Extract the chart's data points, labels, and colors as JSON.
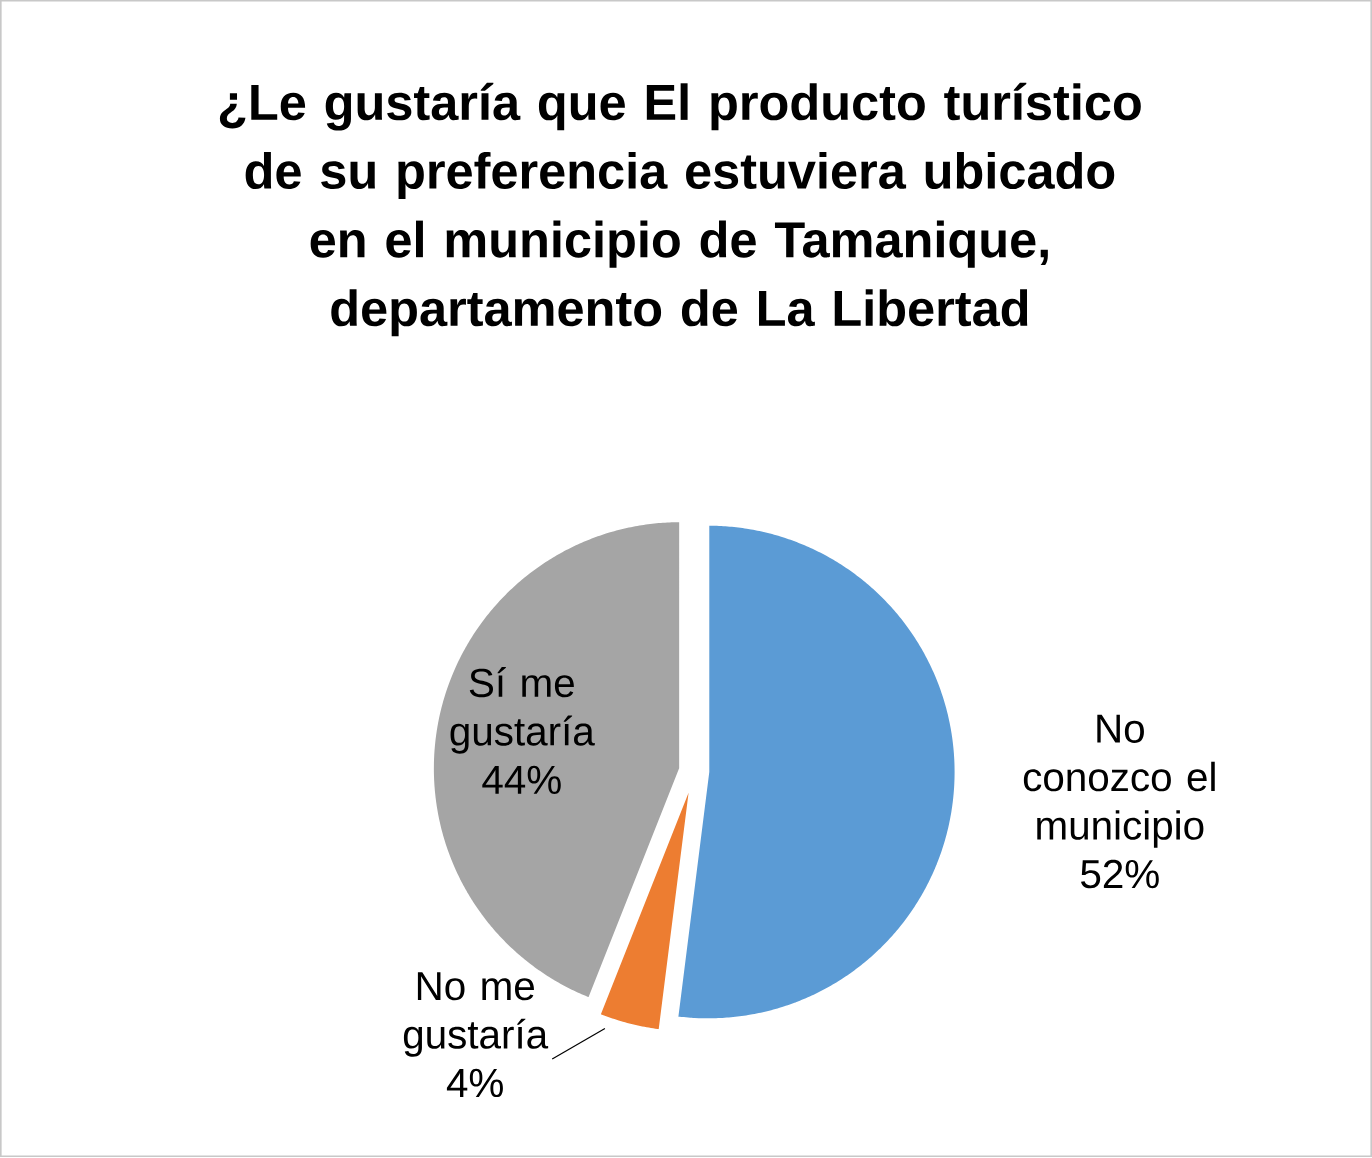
{
  "chart_data": {
    "type": "pie",
    "title": "¿Le gustaría que El producto turístico de su preferencia estuviera ubicado en el municipio de Tamanique, departamento de La Libertad",
    "categories": [
      "No conozco el municipio",
      "No me gustaría",
      "Sí me gustaría"
    ],
    "values": [
      52,
      4,
      44
    ],
    "value_labels": [
      "52%",
      "4%",
      "44%"
    ],
    "colors": [
      "#5b9bd5",
      "#ed7d31",
      "#a5a5a5"
    ]
  }
}
